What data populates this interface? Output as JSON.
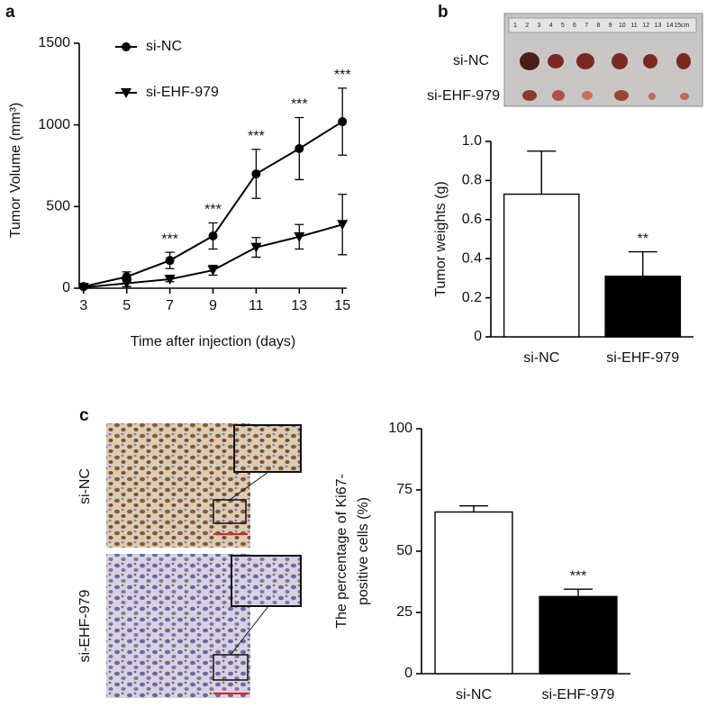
{
  "panels": [
    "a",
    "b",
    "c"
  ],
  "photos": {
    "b": {
      "row_labels": [
        "si-NC",
        "si-EHF-979"
      ],
      "ruler_labels": [
        "1",
        "2",
        "3",
        "4",
        "5",
        "6",
        "7",
        "8",
        "9",
        "10",
        "11",
        "12",
        "13",
        "14",
        "15cm"
      ]
    },
    "c": {
      "row_labels": [
        "si-NC",
        "si-EHF-979"
      ]
    }
  },
  "chart_data": [
    {
      "type": "line",
      "xlabel": "Time after injection (days)",
      "ylabel": "Tumor Volume (mm³)",
      "x": [
        3,
        5,
        7,
        9,
        11,
        13,
        15
      ],
      "xlim": [
        2.8,
        15.2
      ],
      "xticks": [
        3,
        5,
        7,
        9,
        11,
        13,
        15
      ],
      "ylim": [
        0,
        1500
      ],
      "yticks": [
        0,
        500,
        1000,
        1500
      ],
      "legend": "upper left",
      "series": [
        {
          "name": "si-NC",
          "color": "#000000",
          "marker": "circle",
          "values": [
            10,
            70,
            170,
            320,
            700,
            855,
            1020
          ],
          "errors": [
            10,
            30,
            50,
            80,
            150,
            190,
            205
          ]
        },
        {
          "name": "si-EHF-979",
          "color": "#000000",
          "marker": "triangle-down",
          "values": [
            5,
            30,
            55,
            110,
            250,
            315,
            390
          ],
          "errors": [
            5,
            20,
            15,
            30,
            60,
            75,
            185
          ]
        }
      ],
      "annotations": [
        null,
        null,
        "***",
        "***",
        "***",
        "***",
        "***"
      ]
    },
    {
      "type": "bar",
      "ylabel": "Tumor weights (g)",
      "categories": [
        "si-NC",
        "si-EHF-979"
      ],
      "values": [
        0.73,
        0.31
      ],
      "errors": [
        0.22,
        0.125
      ],
      "colors": [
        "#ffffff",
        "#000000"
      ],
      "ylim": [
        0,
        1
      ],
      "yticks": [
        0,
        0.2,
        0.4,
        0.6,
        0.8,
        {
          "value": 1,
          "label": "1.0"
        }
      ],
      "annotations": [
        null,
        "**"
      ]
    },
    {
      "type": "bar",
      "ylabel_lines": [
        "The percentage of Ki67-",
        "positive cells (%)"
      ],
      "categories": [
        "si-NC",
        "si-EHF-979"
      ],
      "values": [
        66,
        31.5
      ],
      "errors": [
        2.5,
        3
      ],
      "colors": [
        "#ffffff",
        "#000000"
      ],
      "ylim": [
        0,
        100
      ],
      "yticks": [
        0,
        25,
        50,
        75,
        100
      ],
      "annotations": [
        null,
        "***"
      ]
    }
  ]
}
